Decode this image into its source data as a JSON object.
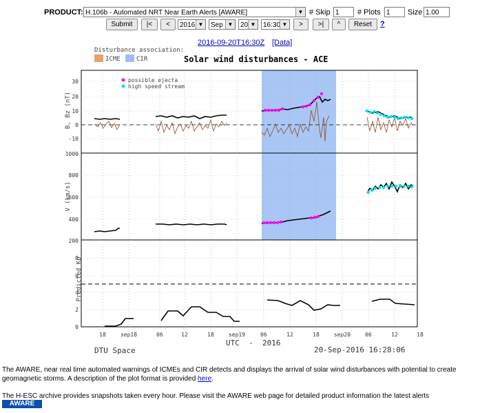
{
  "form": {
    "product_label": "PRODUCT:",
    "product_value": "H.106b - Automated NRT Near Earth Alerts [AWARE]",
    "skip_label": "# Skip",
    "skip_value": "1",
    "plots_label": "# Plots",
    "plots_value": "1",
    "size_label": "Size",
    "size_value": "1.00",
    "submit_label": "Submit",
    "nav_first_label": "|<",
    "nav_prev_label": "<",
    "year_value": "2016",
    "month_value": "Sep",
    "day_value": "20",
    "time_value": "16:30",
    "nav_next_label": ">",
    "nav_last_label": ">|",
    "nav_up_label": "^",
    "reset_label": "Reset",
    "help_label": "?"
  },
  "timestamp": {
    "link_text": "2016-09-20T16:30Z",
    "data_link_text": "[Data]"
  },
  "plot": {
    "title": "Solar wind disturbances - ACE",
    "legend_header": "Disturbance association:",
    "legend_icme": "ICME",
    "legend_cir": "CIR",
    "legend_ejecta": "possible ejecta",
    "legend_hss": "high speed stream",
    "ylabel_b": "B, Bz (nT)",
    "ylabel_v": "V (km/s)",
    "ylabel_kp": "Predicted Kp",
    "b_ticks": [
      "30",
      "20",
      "10",
      "0",
      "-10"
    ],
    "v_ticks": [
      "1000",
      "800",
      "600",
      "400",
      "200"
    ],
    "kp_ticks": [
      "8",
      "6",
      "4",
      "2",
      "0"
    ],
    "x_ticks": [
      "18",
      "sep18",
      "06",
      "12",
      "18",
      "sep19",
      "06",
      "12",
      "18",
      "sep20",
      "06",
      "12",
      "18"
    ],
    "xlabel": "UTC  -  2016",
    "footer_left": "DTU Space",
    "footer_right": "20-Sep-2016 16:28:06",
    "colors": {
      "icme": "#e8a070",
      "cir": "#a0bff0",
      "ejecta": "#ff00ff",
      "hss": "#00e0e0",
      "bz": "#8b4a2a"
    }
  },
  "description": {
    "text1": "The AWARE, near real time automated warnings of ICMEs and CIR detects and displays the arrival of solar wind disturbances with potential to create geomagnetic storms. A description of the plot format is provided",
    "here_link": "here",
    "text1_end": ".",
    "text2": "The H-ESC archive provides snapshots taken every hour. Please visit the AWARE web page for detailed product information the latest alerts",
    "badge": "AWARE"
  }
}
